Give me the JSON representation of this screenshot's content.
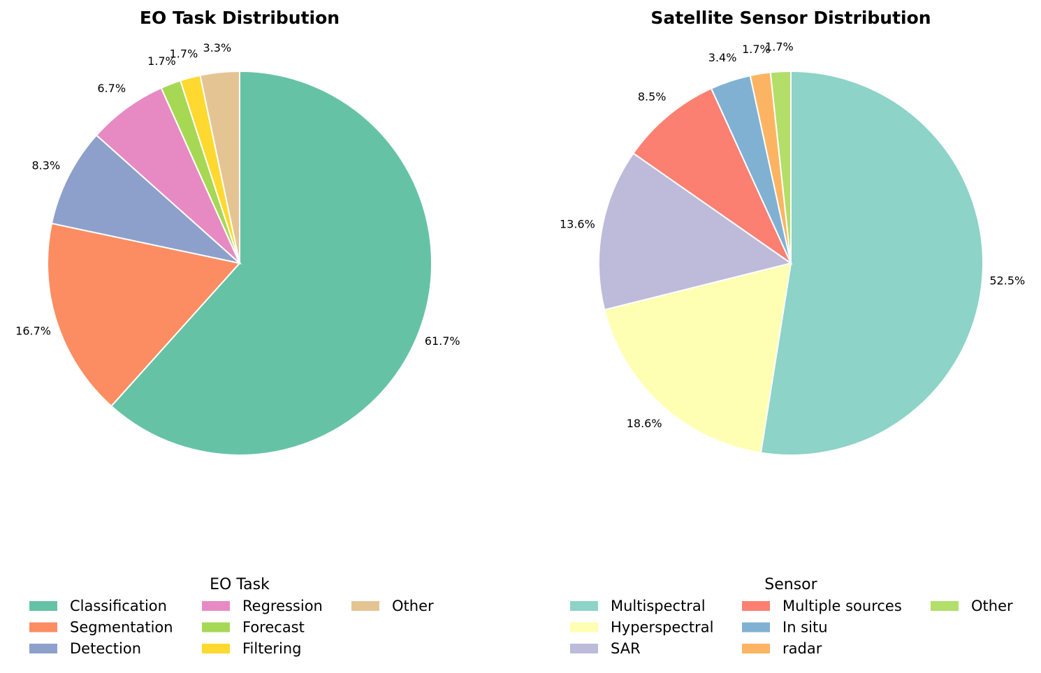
{
  "chart_data": [
    {
      "type": "pie",
      "title": "EO Task Distribution",
      "legend_title": "EO Task",
      "legend_placement": "bottom",
      "start_angle_deg": 90,
      "direction": "clockwise",
      "slices": [
        {
          "label": "Classification",
          "value": 61.7,
          "pct_label": "61.7%",
          "color": "#66c2a5"
        },
        {
          "label": "Segmentation",
          "value": 16.7,
          "pct_label": "16.7%",
          "color": "#fc8d62"
        },
        {
          "label": "Detection",
          "value": 8.3,
          "pct_label": "8.3%",
          "color": "#8da0cb"
        },
        {
          "label": "Regression",
          "value": 6.7,
          "pct_label": "6.7%",
          "color": "#e78ac3"
        },
        {
          "label": "Forecast",
          "value": 1.7,
          "pct_label": "1.7%",
          "color": "#a6d854"
        },
        {
          "label": "Filtering",
          "value": 1.7,
          "pct_label": "1.7%",
          "color": "#ffd92f"
        },
        {
          "label": "Other",
          "value": 3.3,
          "pct_label": "3.3%",
          "color": "#e5c494"
        }
      ]
    },
    {
      "type": "pie",
      "title": "Satellite Sensor Distribution",
      "legend_title": "Sensor",
      "legend_placement": "bottom",
      "start_angle_deg": 90,
      "direction": "clockwise",
      "slices": [
        {
          "label": "Multispectral",
          "value": 52.5,
          "pct_label": "52.5%",
          "color": "#8dd3c7"
        },
        {
          "label": "Hyperspectral",
          "value": 18.6,
          "pct_label": "18.6%",
          "color": "#ffffb3"
        },
        {
          "label": "SAR",
          "value": 13.6,
          "pct_label": "13.6%",
          "color": "#bebada"
        },
        {
          "label": "Multiple sources",
          "value": 8.5,
          "pct_label": "8.5%",
          "color": "#fb8072"
        },
        {
          "label": "In situ",
          "value": 3.4,
          "pct_label": "3.4%",
          "color": "#80b1d3"
        },
        {
          "label": "radar",
          "value": 1.7,
          "pct_label": "1.7%",
          "color": "#fdb462"
        },
        {
          "label": "Other",
          "value": 1.7,
          "pct_label": "1.7%",
          "color": "#b3de69"
        }
      ]
    }
  ]
}
